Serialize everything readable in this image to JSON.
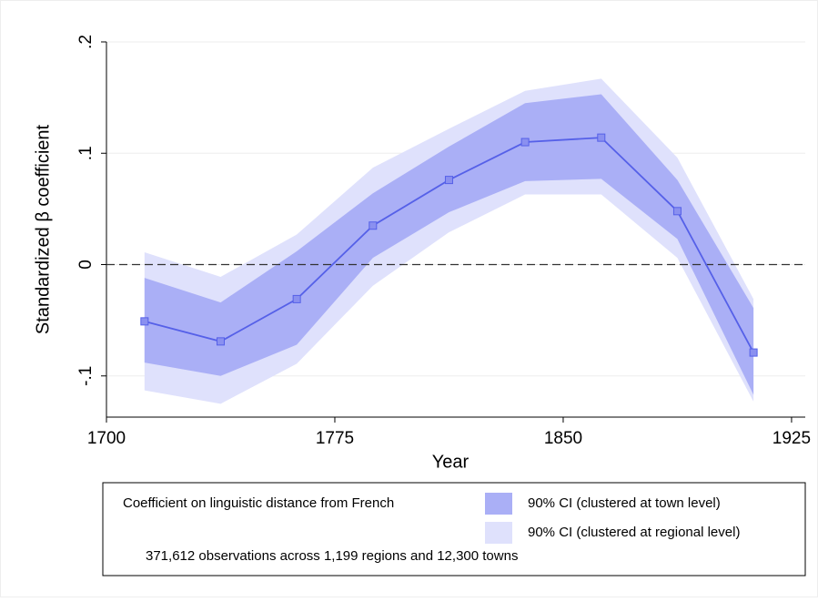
{
  "chart_data": {
    "type": "line",
    "x_label": "Year",
    "y_label": "Standardized β coefficient",
    "x": [
      1712.5,
      1737.5,
      1762.5,
      1787.5,
      1812.5,
      1837.5,
      1862.5,
      1887.5,
      1912.5
    ],
    "series": [
      {
        "name": "Coefficient on linguistic distance from French",
        "color": "#5560e8",
        "values": [
          -0.051,
          -0.069,
          -0.031,
          0.035,
          0.076,
          0.11,
          0.114,
          0.048,
          -0.079
        ]
      }
    ],
    "bands": [
      {
        "name": "90% CI (clustered at town level)",
        "color": "#aaaff6",
        "lower": [
          -0.088,
          -0.1,
          -0.072,
          0.006,
          0.047,
          0.075,
          0.077,
          0.023,
          -0.117
        ],
        "upper": [
          -0.012,
          -0.034,
          0.012,
          0.064,
          0.106,
          0.145,
          0.153,
          0.076,
          -0.039
        ]
      },
      {
        "name": "90% CI (clustered at regional level)",
        "color": "#dfe1fc",
        "lower": [
          -0.113,
          -0.125,
          -0.089,
          -0.019,
          0.029,
          0.063,
          0.063,
          0.006,
          -0.123
        ],
        "upper": [
          0.011,
          -0.011,
          0.027,
          0.087,
          0.122,
          0.156,
          0.167,
          0.096,
          -0.031
        ]
      }
    ],
    "reference_line": 0,
    "note": "371,612 observations across 1,199 regions and 12,300 towns",
    "xlim": [
      1700,
      1929.5
    ],
    "xticks": [
      1700,
      1775,
      1850,
      1925
    ],
    "ylim": [
      -0.137,
      0.2
    ],
    "yticks": [
      {
        "value": -0.1,
        "label": "-.1"
      },
      0,
      {
        "value": 0.1,
        "label": ".1"
      },
      {
        "value": 0.2,
        "label": ".2"
      }
    ],
    "grid": true
  }
}
